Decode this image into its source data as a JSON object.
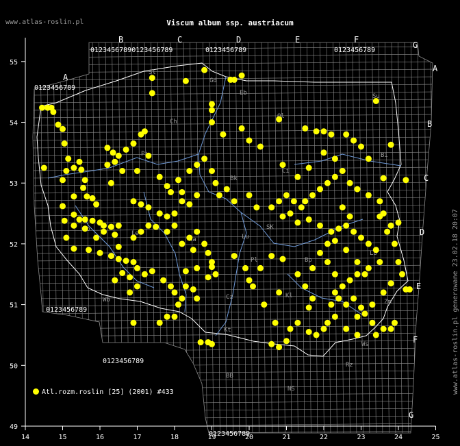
{
  "site_label": "www.atlas-roslin.pl",
  "title": "Viscum album ssp. austriacum",
  "generated_label": "www.atlas-roslin.pl generowane 23.02.18 20:07",
  "legend": {
    "label": "Atl.rozm.roslin [25] (2001) #433",
    "color": "#ffff00"
  },
  "colors": {
    "background": "#000000",
    "grid": "#8c8c8c",
    "border": "#ffffff",
    "river": "#6f9ad8",
    "point": "#ffff00"
  },
  "chart_data": {
    "type": "scatter",
    "x_axis": {
      "ticks": [
        "14",
        "15",
        "16",
        "17",
        "18",
        "19",
        "20",
        "21",
        "22",
        "23",
        "24",
        "25"
      ],
      "range": [
        14,
        25
      ]
    },
    "y_axis": {
      "ticks": [
        "49",
        "50",
        "51",
        "52",
        "53",
        "54",
        "55"
      ],
      "range": [
        49,
        55.5
      ]
    },
    "grid_letters_top": [
      "A",
      "B",
      "C",
      "D",
      "E",
      "F",
      "G"
    ],
    "grid_letters_right": [
      "A",
      "B",
      "C",
      "D",
      "E",
      "F",
      "G"
    ],
    "region_labels": [
      "Sl",
      "Gd",
      "Eb",
      "Su",
      "Ol",
      "Ch",
      "Pi",
      "Bi",
      "Ci",
      "Bk",
      "SK",
      "Lu",
      "Le",
      "Po",
      "Wa",
      "Pl",
      "Bp",
      "Lb",
      "Wb",
      "Cz",
      "Kl",
      "Zm",
      "Kt",
      "BB",
      "NS",
      "Rz",
      "Ws"
    ],
    "points": [
      [
        14.45,
        54.24
      ],
      [
        14.6,
        54.24
      ],
      [
        14.7,
        54.24
      ],
      [
        14.75,
        54.17
      ],
      [
        14.88,
        53.96
      ],
      [
        15.0,
        53.89
      ],
      [
        15.05,
        53.65
      ],
      [
        15.15,
        53.4
      ],
      [
        15.1,
        53.2
      ],
      [
        15.3,
        53.25
      ],
      [
        15.45,
        53.35
      ],
      [
        15.5,
        53.22
      ],
      [
        14.5,
        53.25
      ],
      [
        15.6,
        53.05
      ],
      [
        15.0,
        53.05
      ],
      [
        15.55,
        52.92
      ],
      [
        15.65,
        52.78
      ],
      [
        15.3,
        52.78
      ],
      [
        15.8,
        52.75
      ],
      [
        15.9,
        52.65
      ],
      [
        15.0,
        52.62
      ],
      [
        15.05,
        52.38
      ],
      [
        15.3,
        52.48
      ],
      [
        15.45,
        52.4
      ],
      [
        15.6,
        52.4
      ],
      [
        15.8,
        52.38
      ],
      [
        16.0,
        52.35
      ],
      [
        16.1,
        52.3
      ],
      [
        16.3,
        52.28
      ],
      [
        16.5,
        52.3
      ],
      [
        15.3,
        52.3
      ],
      [
        15.6,
        52.25
      ],
      [
        16.1,
        52.2
      ],
      [
        15.9,
        52.1
      ],
      [
        16.4,
        52.15
      ],
      [
        15.1,
        52.1
      ],
      [
        15.3,
        51.92
      ],
      [
        15.7,
        51.9
      ],
      [
        16.0,
        51.85
      ],
      [
        16.3,
        51.8
      ],
      [
        16.5,
        51.75
      ],
      [
        16.7,
        51.72
      ],
      [
        16.9,
        51.7
      ],
      [
        17.0,
        51.6
      ],
      [
        16.6,
        51.52
      ],
      [
        16.8,
        51.45
      ],
      [
        17.2,
        51.5
      ],
      [
        17.4,
        51.55
      ],
      [
        16.4,
        51.4
      ],
      [
        17.0,
        51.3
      ],
      [
        16.8,
        51.2
      ],
      [
        17.7,
        51.4
      ],
      [
        17.9,
        51.3
      ],
      [
        18.0,
        51.2
      ],
      [
        18.2,
        51.1
      ],
      [
        18.1,
        51.0
      ],
      [
        17.8,
        50.8
      ],
      [
        18.0,
        50.8
      ],
      [
        17.6,
        50.7
      ],
      [
        16.9,
        50.7
      ],
      [
        18.7,
        50.38
      ],
      [
        18.9,
        50.38
      ],
      [
        19.0,
        50.35
      ],
      [
        18.3,
        51.3
      ],
      [
        18.5,
        51.25
      ],
      [
        18.6,
        51.1
      ],
      [
        18.3,
        51.55
      ],
      [
        18.6,
        51.6
      ],
      [
        19.0,
        51.62
      ],
      [
        19.1,
        51.5
      ],
      [
        18.9,
        51.45
      ],
      [
        18.5,
        51.9
      ],
      [
        18.2,
        52.0
      ],
      [
        18.4,
        52.1
      ],
      [
        18.6,
        52.2
      ],
      [
        18.0,
        52.3
      ],
      [
        17.8,
        52.2
      ],
      [
        17.3,
        52.3
      ],
      [
        17.1,
        52.2
      ],
      [
        16.9,
        52.1
      ],
      [
        16.5,
        51.95
      ],
      [
        16.9,
        52.7
      ],
      [
        17.1,
        52.65
      ],
      [
        17.3,
        52.6
      ],
      [
        18.2,
        52.7
      ],
      [
        18.4,
        52.65
      ],
      [
        18.6,
        52.8
      ],
      [
        18.2,
        52.85
      ],
      [
        18.1,
        53.05
      ],
      [
        18.4,
        53.2
      ],
      [
        18.6,
        53.3
      ],
      [
        18.8,
        53.4
      ],
      [
        19.0,
        53.2
      ],
      [
        19.1,
        53.0
      ],
      [
        19.2,
        52.8
      ],
      [
        19.4,
        52.9
      ],
      [
        19.6,
        52.7
      ],
      [
        20.0,
        52.8
      ],
      [
        20.2,
        52.6
      ],
      [
        20.6,
        52.6
      ],
      [
        20.8,
        52.7
      ],
      [
        21.0,
        52.8
      ],
      [
        21.2,
        52.7
      ],
      [
        21.4,
        52.6
      ],
      [
        21.5,
        52.7
      ],
      [
        21.7,
        52.8
      ],
      [
        21.9,
        52.9
      ],
      [
        22.1,
        53.0
      ],
      [
        22.3,
        53.1
      ],
      [
        22.5,
        53.2
      ],
      [
        22.7,
        53.0
      ],
      [
        22.9,
        52.9
      ],
      [
        23.2,
        52.8
      ],
      [
        23.5,
        52.7
      ],
      [
        23.6,
        52.5
      ],
      [
        23.7,
        52.2
      ],
      [
        23.9,
        52.0
      ],
      [
        24.0,
        51.7
      ],
      [
        24.1,
        51.5
      ],
      [
        23.8,
        51.35
      ],
      [
        23.6,
        51.2
      ],
      [
        23.3,
        51.0
      ],
      [
        23.1,
        50.85
      ],
      [
        22.9,
        50.8
      ],
      [
        23.3,
        50.7
      ],
      [
        23.6,
        50.6
      ],
      [
        23.8,
        50.6
      ],
      [
        23.9,
        50.7
      ],
      [
        23.4,
        50.5
      ],
      [
        22.9,
        50.5
      ],
      [
        22.6,
        50.6
      ],
      [
        22.3,
        50.8
      ],
      [
        22.1,
        50.7
      ],
      [
        21.8,
        50.5
      ],
      [
        21.6,
        50.55
      ],
      [
        21.3,
        50.7
      ],
      [
        21.1,
        50.6
      ],
      [
        21.0,
        50.4
      ],
      [
        20.8,
        50.3
      ],
      [
        20.6,
        50.35
      ],
      [
        20.7,
        50.7
      ],
      [
        20.4,
        51.0
      ],
      [
        20.1,
        51.3
      ],
      [
        20.3,
        51.6
      ],
      [
        20.6,
        51.8
      ],
      [
        20.9,
        51.75
      ],
      [
        21.3,
        51.5
      ],
      [
        21.5,
        51.3
      ],
      [
        21.7,
        51.6
      ],
      [
        21.9,
        51.85
      ],
      [
        22.1,
        52.0
      ],
      [
        22.2,
        52.2
      ],
      [
        22.4,
        52.25
      ],
      [
        22.6,
        52.3
      ],
      [
        22.8,
        52.2
      ],
      [
        23.0,
        52.1
      ],
      [
        23.2,
        52.0
      ],
      [
        23.4,
        51.9
      ],
      [
        23.5,
        51.7
      ],
      [
        23.2,
        51.6
      ],
      [
        22.9,
        51.5
      ],
      [
        22.7,
        51.4
      ],
      [
        22.5,
        51.3
      ],
      [
        22.3,
        51.2
      ],
      [
        22.2,
        51.0
      ],
      [
        22.4,
        51.1
      ],
      [
        22.6,
        51.0
      ],
      [
        22.8,
        51.1
      ],
      [
        23.0,
        50.95
      ],
      [
        22.3,
        51.5
      ],
      [
        22.1,
        51.7
      ],
      [
        21.9,
        52.3
      ],
      [
        21.6,
        52.4
      ],
      [
        21.3,
        52.35
      ],
      [
        21.1,
        52.5
      ],
      [
        20.9,
        52.45
      ],
      [
        22.0,
        53.5
      ],
      [
        22.3,
        53.4
      ],
      [
        21.6,
        53.25
      ],
      [
        21.3,
        53.1
      ],
      [
        20.9,
        53.3
      ],
      [
        20.3,
        53.6
      ],
      [
        20.0,
        53.7
      ],
      [
        19.8,
        53.9
      ],
      [
        19.3,
        53.8
      ],
      [
        19.0,
        54.0
      ],
      [
        19.0,
        54.2
      ],
      [
        19.0,
        54.3
      ],
      [
        19.5,
        54.7
      ],
      [
        19.6,
        54.7
      ],
      [
        19.8,
        54.77
      ],
      [
        18.3,
        54.68
      ],
      [
        18.8,
        54.86
      ],
      [
        17.4,
        54.73
      ],
      [
        17.4,
        54.48
      ],
      [
        20.8,
        54.05
      ],
      [
        21.5,
        53.9
      ],
      [
        21.8,
        53.85
      ],
      [
        22.0,
        53.85
      ],
      [
        22.2,
        53.8
      ],
      [
        23.4,
        54.35
      ],
      [
        23.8,
        53.63
      ],
      [
        23.6,
        53.08
      ],
      [
        24.2,
        53.05
      ],
      [
        24.0,
        52.35
      ],
      [
        24.2,
        51.25
      ],
      [
        24.3,
        51.25
      ],
      [
        16.2,
        53.58
      ],
      [
        16.35,
        53.5
      ],
      [
        16.5,
        53.45
      ],
      [
        16.7,
        53.55
      ],
      [
        16.9,
        53.65
      ],
      [
        17.1,
        53.8
      ],
      [
        17.2,
        53.85
      ],
      [
        16.2,
        53.3
      ],
      [
        16.4,
        53.35
      ],
      [
        16.6,
        53.2
      ],
      [
        17.0,
        53.2
      ],
      [
        16.3,
        53.0
      ],
      [
        17.3,
        53.45
      ],
      [
        17.6,
        53.1
      ],
      [
        17.8,
        52.95
      ],
      [
        17.9,
        52.85
      ],
      [
        18.0,
        52.5
      ],
      [
        17.8,
        52.45
      ],
      [
        17.6,
        52.5
      ],
      [
        17.5,
        52.28
      ],
      [
        18.8,
        52.0
      ],
      [
        18.9,
        51.85
      ],
      [
        19.0,
        51.7
      ],
      [
        19.6,
        51.8
      ],
      [
        19.9,
        51.6
      ],
      [
        20.0,
        51.4
      ],
      [
        20.8,
        51.2
      ],
      [
        21.7,
        51.1
      ],
      [
        21.6,
        50.95
      ],
      [
        22.0,
        50.6
      ],
      [
        23.2,
        53.4
      ],
      [
        23.0,
        53.6
      ],
      [
        22.8,
        53.7
      ],
      [
        22.6,
        53.8
      ],
      [
        23.5,
        52.45
      ],
      [
        23.8,
        52.3
      ],
      [
        22.5,
        52.6
      ],
      [
        22.7,
        52.45
      ],
      [
        22.3,
        52.05
      ],
      [
        22.6,
        51.9
      ],
      [
        22.9,
        51.7
      ],
      [
        23.1,
        51.5
      ]
    ]
  }
}
